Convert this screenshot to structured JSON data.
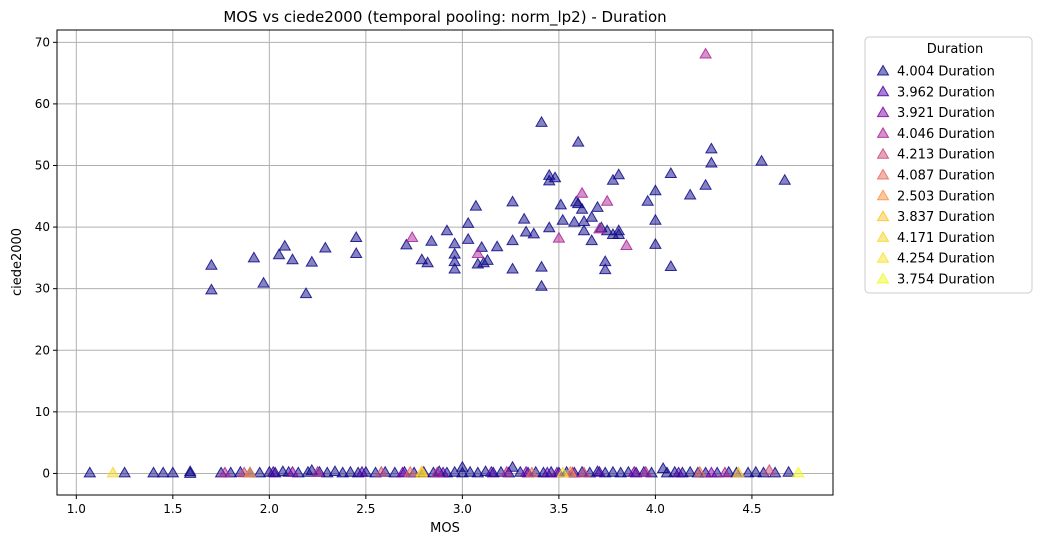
{
  "chart_data": {
    "type": "scatter",
    "title": "MOS vs ciede2000 (temporal pooling: norm_lp2) - Duration",
    "xlabel": "MOS",
    "ylabel": "ciede2000",
    "xlim": [
      0.9,
      4.92
    ],
    "ylim": [
      -3.5,
      72
    ],
    "x_ticks": [
      1.0,
      1.5,
      2.0,
      2.5,
      3.0,
      3.5,
      4.0,
      4.5
    ],
    "x_tick_labels": [
      "1.0",
      "1.5",
      "2.0",
      "2.5",
      "3.0",
      "3.5",
      "4.0",
      "4.5"
    ],
    "y_ticks": [
      0,
      10,
      20,
      30,
      40,
      50,
      60,
      70
    ],
    "y_tick_labels": [
      "0",
      "10",
      "20",
      "30",
      "40",
      "50",
      "60",
      "70"
    ],
    "grid": true,
    "marker": "triangle",
    "legend": {
      "title": "Duration",
      "placement": "outside-right"
    },
    "series": [
      {
        "name": "4.004 Duration",
        "color": "#0d0887",
        "points": [
          [
            1.7,
            33.8
          ],
          [
            1.7,
            29.8
          ],
          [
            1.92,
            35.0
          ],
          [
            1.97,
            30.9
          ],
          [
            2.05,
            35.5
          ],
          [
            2.08,
            36.9
          ],
          [
            2.12,
            34.7
          ],
          [
            2.19,
            29.2
          ],
          [
            2.22,
            34.3
          ],
          [
            2.29,
            36.6
          ],
          [
            2.45,
            38.3
          ],
          [
            2.45,
            35.7
          ],
          [
            2.71,
            37.1
          ],
          [
            2.79,
            34.7
          ],
          [
            2.82,
            34.2
          ],
          [
            2.84,
            37.7
          ],
          [
            2.92,
            39.4
          ],
          [
            2.96,
            37.3
          ],
          [
            2.96,
            35.6
          ],
          [
            2.96,
            34.4
          ],
          [
            2.96,
            33.2
          ],
          [
            3.03,
            40.6
          ],
          [
            3.03,
            38.0
          ],
          [
            3.07,
            43.4
          ],
          [
            3.08,
            34.0
          ],
          [
            3.1,
            36.7
          ],
          [
            3.11,
            34.2
          ],
          [
            3.13,
            34.6
          ],
          [
            3.18,
            36.8
          ],
          [
            3.26,
            44.1
          ],
          [
            3.26,
            37.8
          ],
          [
            3.26,
            33.2
          ],
          [
            3.32,
            41.3
          ],
          [
            3.33,
            39.2
          ],
          [
            3.37,
            38.9
          ],
          [
            3.41,
            57.0
          ],
          [
            3.41,
            33.5
          ],
          [
            3.41,
            30.4
          ],
          [
            3.45,
            47.5
          ],
          [
            3.45,
            39.9
          ],
          [
            3.45,
            48.4
          ],
          [
            3.48,
            48.0
          ],
          [
            3.51,
            43.6
          ],
          [
            3.52,
            41.1
          ],
          [
            3.58,
            40.8
          ],
          [
            3.59,
            44.1
          ],
          [
            3.6,
            53.8
          ],
          [
            3.6,
            43.8
          ],
          [
            3.62,
            42.9
          ],
          [
            3.63,
            40.9
          ],
          [
            3.63,
            39.4
          ],
          [
            3.67,
            41.6
          ],
          [
            3.67,
            37.8
          ],
          [
            3.7,
            43.2
          ],
          [
            3.72,
            39.9
          ],
          [
            3.74,
            34.4
          ],
          [
            3.74,
            33.1
          ],
          [
            3.75,
            39.4
          ],
          [
            3.78,
            47.6
          ],
          [
            3.78,
            38.8
          ],
          [
            3.81,
            48.5
          ],
          [
            3.81,
            38.8
          ],
          [
            3.81,
            39.4
          ],
          [
            3.96,
            44.2
          ],
          [
            4.0,
            45.9
          ],
          [
            4.0,
            41.1
          ],
          [
            4.0,
            37.2
          ],
          [
            4.08,
            48.7
          ],
          [
            4.08,
            33.6
          ],
          [
            4.18,
            45.2
          ],
          [
            4.26,
            46.8
          ],
          [
            4.29,
            52.7
          ],
          [
            4.29,
            50.4
          ],
          [
            4.55,
            50.7
          ],
          [
            4.67,
            47.6
          ],
          [
            1.07,
            0.1
          ],
          [
            1.25,
            0.1
          ],
          [
            1.4,
            0.1
          ],
          [
            1.45,
            0.1
          ],
          [
            1.5,
            0.1
          ],
          [
            1.59,
            0.3
          ],
          [
            1.59,
            0.0
          ],
          [
            1.75,
            0.1
          ],
          [
            1.8,
            0.1
          ],
          [
            1.85,
            0.2
          ],
          [
            1.9,
            0.1
          ],
          [
            1.95,
            0.1
          ],
          [
            2.0,
            0.2
          ],
          [
            2.03,
            0.1
          ],
          [
            2.07,
            0.3
          ],
          [
            2.1,
            0.2
          ],
          [
            2.15,
            0.1
          ],
          [
            2.2,
            0.2
          ],
          [
            2.22,
            0.5
          ],
          [
            2.26,
            0.2
          ],
          [
            2.3,
            0.1
          ],
          [
            2.34,
            0.3
          ],
          [
            2.38,
            0.1
          ],
          [
            2.42,
            0.2
          ],
          [
            2.46,
            0.1
          ],
          [
            2.5,
            0.2
          ],
          [
            2.55,
            0.1
          ],
          [
            2.6,
            0.2
          ],
          [
            2.65,
            0.1
          ],
          [
            2.7,
            0.2
          ],
          [
            2.75,
            0.1
          ],
          [
            2.8,
            0.2
          ],
          [
            2.85,
            0.1
          ],
          [
            2.88,
            0.3
          ],
          [
            2.92,
            0.1
          ],
          [
            2.96,
            0.2
          ],
          [
            3.0,
            1.0
          ],
          [
            3.0,
            0.1
          ],
          [
            3.04,
            0.2
          ],
          [
            3.08,
            0.1
          ],
          [
            3.12,
            0.3
          ],
          [
            3.16,
            0.1
          ],
          [
            3.2,
            0.2
          ],
          [
            3.24,
            0.1
          ],
          [
            3.26,
            1.0
          ],
          [
            3.3,
            0.2
          ],
          [
            3.34,
            0.1
          ],
          [
            3.38,
            0.2
          ],
          [
            3.42,
            0.1
          ],
          [
            3.46,
            0.2
          ],
          [
            3.5,
            0.1
          ],
          [
            3.54,
            0.2
          ],
          [
            3.58,
            0.1
          ],
          [
            3.62,
            0.2
          ],
          [
            3.66,
            0.1
          ],
          [
            3.7,
            0.3
          ],
          [
            3.74,
            0.1
          ],
          [
            3.78,
            0.2
          ],
          [
            3.82,
            0.1
          ],
          [
            3.86,
            0.2
          ],
          [
            3.9,
            0.1
          ],
          [
            3.94,
            0.2
          ],
          [
            3.98,
            0.1
          ],
          [
            4.04,
            0.8
          ],
          [
            4.06,
            0.1
          ],
          [
            4.1,
            0.2
          ],
          [
            4.14,
            0.1
          ],
          [
            4.18,
            0.2
          ],
          [
            4.22,
            0.1
          ],
          [
            4.26,
            0.1
          ],
          [
            4.32,
            0.1
          ],
          [
            4.38,
            0.2
          ],
          [
            4.42,
            0.1
          ],
          [
            4.48,
            0.1
          ],
          [
            4.52,
            0.2
          ],
          [
            4.56,
            0.1
          ],
          [
            4.62,
            0.1
          ],
          [
            4.69,
            0.2
          ]
        ]
      },
      {
        "name": "3.962 Duration",
        "color": "#4c02a1",
        "points": [
          [
            2.02,
            0.2
          ],
          [
            2.48,
            0.2
          ],
          [
            2.9,
            0.1
          ],
          [
            3.15,
            0.2
          ],
          [
            3.44,
            0.1
          ],
          [
            3.71,
            0.2
          ],
          [
            4.12,
            0.1
          ]
        ]
      },
      {
        "name": "3.921 Duration",
        "color": "#7e03a8",
        "points": [
          [
            2.12,
            0.2
          ],
          [
            2.69,
            0.1
          ],
          [
            3.33,
            0.2
          ],
          [
            3.49,
            0.1
          ],
          [
            3.89,
            0.2
          ],
          [
            4.29,
            0.1
          ]
        ]
      },
      {
        "name": "4.046 Duration",
        "color": "#a92395",
        "points": [
          [
            4.26,
            68.1
          ],
          [
            2.74,
            38.3
          ],
          [
            3.08,
            35.7
          ],
          [
            3.62,
            45.5
          ],
          [
            3.75,
            44.2
          ],
          [
            3.5,
            38.2
          ],
          [
            3.85,
            37.0
          ],
          [
            3.71,
            39.7
          ],
          [
            1.77,
            0.1
          ],
          [
            2.25,
            0.2
          ],
          [
            2.87,
            0.1
          ],
          [
            3.23,
            0.2
          ],
          [
            3.57,
            0.1
          ],
          [
            3.95,
            0.2
          ],
          [
            4.36,
            0.1
          ]
        ]
      },
      {
        "name": "4.213 Duration",
        "color": "#cc4778",
        "points": [
          [
            1.87,
            0.1
          ],
          [
            2.58,
            0.2
          ],
          [
            3.63,
            0.1
          ],
          [
            4.59,
            0.5
          ]
        ]
      },
      {
        "name": "4.087 Duration",
        "color": "#e56b5d",
        "points": [
          [
            2.73,
            0.2
          ],
          [
            3.36,
            0.1
          ],
          [
            4.23,
            0.2
          ]
        ]
      },
      {
        "name": "2.503 Duration",
        "color": "#f89441",
        "points": [
          [
            1.9,
            0.1
          ],
          [
            3.56,
            0.2
          ]
        ]
      },
      {
        "name": "3.837 Duration",
        "color": "#fdc328",
        "points": [
          [
            2.79,
            0.3
          ],
          [
            4.43,
            0.1
          ]
        ]
      },
      {
        "name": "4.171 Duration",
        "color": "#f8d62a",
        "points": [
          [
            1.19,
            0.1
          ],
          [
            2.79,
            0.0
          ]
        ]
      },
      {
        "name": "4.254 Duration",
        "color": "#f7e32f",
        "points": [
          [
            3.52,
            0.1
          ]
        ]
      },
      {
        "name": "3.754 Duration",
        "color": "#f0f921",
        "points": [
          [
            4.74,
            0.1
          ]
        ]
      }
    ]
  }
}
